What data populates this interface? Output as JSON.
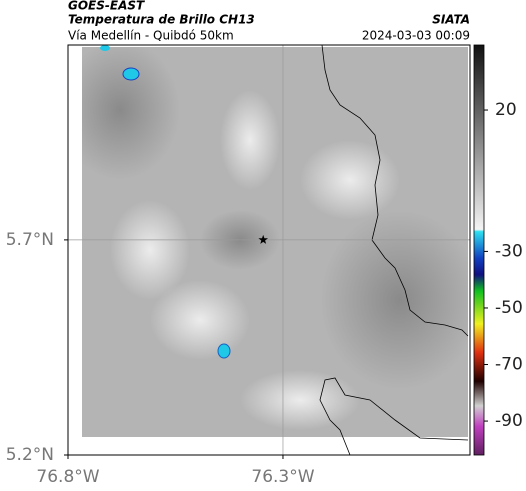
{
  "chart_data": {
    "type": "map",
    "header": "GOES-EAST",
    "title": "Temperatura de Brillo CH13",
    "subtitle": "Vía Medellín - Quibdó 50km",
    "source": "SIATA",
    "timestamp": "2024-03-03 00:09",
    "xlim": [
      -76.8,
      -75.865
    ],
    "ylim": [
      5.2,
      6.153
    ],
    "xticks": [
      {
        "value": -76.8,
        "label": "76.8°W"
      },
      {
        "value": -76.3,
        "label": "76.3°W"
      }
    ],
    "yticks": [
      {
        "value": 5.2,
        "label": "5.2°N"
      },
      {
        "value": 5.7,
        "label": "5.7°N"
      }
    ],
    "grid": true,
    "marker": {
      "x": -76.346,
      "y": 5.7
    },
    "colorbar": {
      "lim": [
        43,
        -102
      ],
      "ticks": [
        20,
        -30,
        -50,
        -70,
        -90
      ]
    }
  }
}
